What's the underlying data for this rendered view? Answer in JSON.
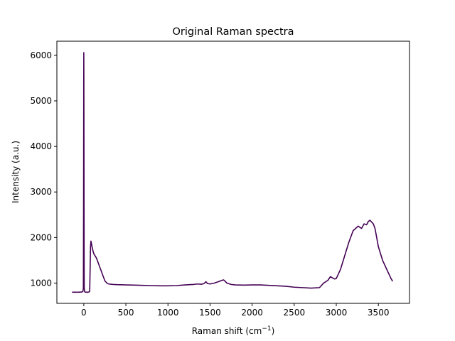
{
  "chart_data": {
    "type": "line",
    "title": "Original Raman spectra",
    "xlabel_main": "Raman shift (cm",
    "xlabel_sup": "−1",
    "xlabel_close": ")",
    "ylabel": "Intensity (a.u.)",
    "xlim": [
      -320,
      3870
    ],
    "ylim": [
      555,
      6310
    ],
    "xticks": [
      0,
      500,
      1000,
      1500,
      2000,
      2500,
      3000,
      3500
    ],
    "xtick_labels": [
      "0",
      "500",
      "1000",
      "1500",
      "2000",
      "2500",
      "3000",
      "3500"
    ],
    "yticks": [
      1000,
      2000,
      3000,
      4000,
      5000,
      6000
    ],
    "ytick_labels": [
      "1000",
      "2000",
      "3000",
      "4000",
      "5000",
      "6000"
    ],
    "grid": false,
    "legend": "none",
    "series": [
      {
        "color": "#440154",
        "x": [
          -140,
          -60,
          -20,
          -10,
          -5,
          -3,
          -1,
          0,
          1,
          3,
          5,
          10,
          20,
          50,
          60,
          70,
          75,
          80,
          85,
          90,
          100,
          110,
          120,
          150,
          200,
          250,
          280,
          300,
          320,
          350,
          400,
          500,
          600,
          700,
          800,
          900,
          1000,
          1100,
          1200,
          1300,
          1350,
          1400,
          1430,
          1450,
          1470,
          1500,
          1550,
          1600,
          1640,
          1660,
          1680,
          1700,
          1750,
          1800,
          1900,
          2000,
          2100,
          2200,
          2300,
          2400,
          2500,
          2600,
          2700,
          2800,
          2850,
          2900,
          2930,
          2950,
          2980,
          3000,
          3050,
          3100,
          3150,
          3200,
          3230,
          3260,
          3300,
          3330,
          3360,
          3380,
          3400,
          3420,
          3440,
          3460,
          3500,
          3550,
          3600,
          3650,
          3670
        ],
        "y": [
          800,
          800,
          805,
          820,
          900,
          2500,
          5300,
          6060,
          5300,
          2500,
          900,
          810,
          800,
          800,
          805,
          820,
          1300,
          1800,
          1920,
          1880,
          1780,
          1700,
          1640,
          1550,
          1300,
          1050,
          990,
          980,
          975,
          970,
          965,
          960,
          955,
          950,
          945,
          940,
          940,
          945,
          960,
          970,
          980,
          975,
          990,
          1030,
          990,
          980,
          1000,
          1030,
          1060,
          1070,
          1040,
          1000,
          970,
          960,
          955,
          960,
          960,
          950,
          940,
          930,
          910,
          900,
          890,
          900,
          1000,
          1060,
          1140,
          1120,
          1090,
          1100,
          1300,
          1600,
          1900,
          2150,
          2200,
          2250,
          2200,
          2300,
          2280,
          2350,
          2380,
          2340,
          2300,
          2200,
          1800,
          1500,
          1300,
          1100,
          1040
        ]
      }
    ]
  }
}
